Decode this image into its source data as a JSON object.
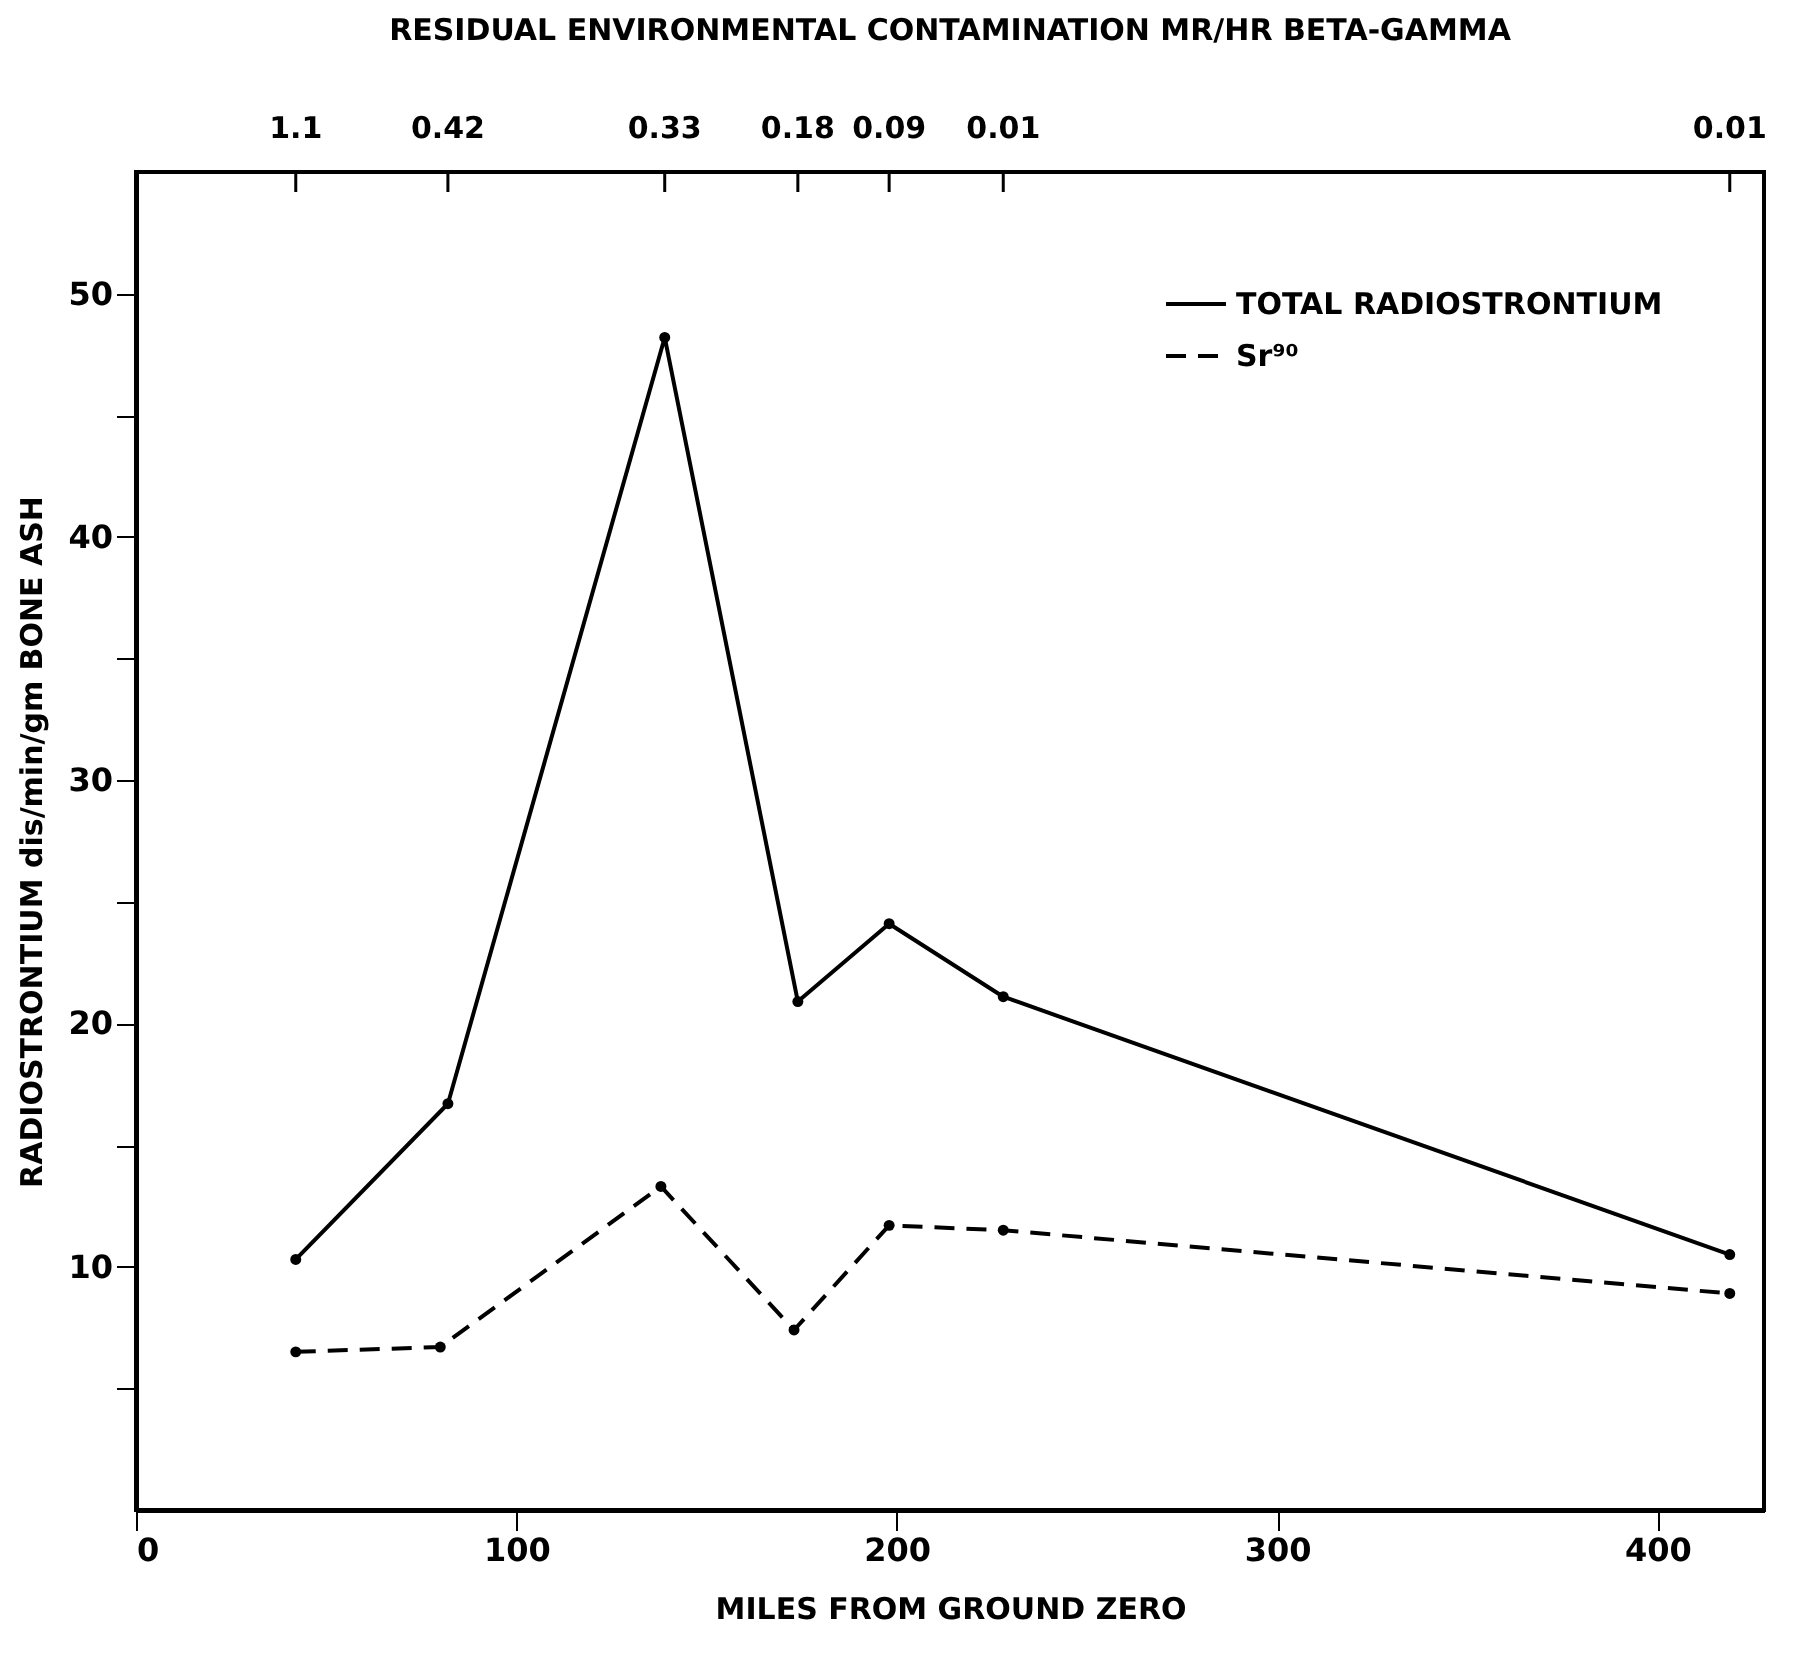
{
  "chart_data": {
    "type": "line",
    "xlabel": "MILES FROM GROUND ZERO",
    "ylabel": "RADIOSTRONTIUM   dis/min/gm BONE ASH",
    "x2label": "RESIDUAL  ENVIRONMENTAL CONTAMINATION   MR/HR  BETA-GAMMA",
    "xlim": [
      0,
      428
    ],
    "xticks": [
      0,
      100,
      200,
      300,
      400
    ],
    "ylim": [
      0,
      55
    ],
    "yticks": [
      {
        "value": 5,
        "label": null
      },
      10,
      {
        "value": 15,
        "label": null
      },
      20,
      {
        "value": 25,
        "label": null
      },
      30,
      {
        "value": 35,
        "label": null
      },
      40,
      {
        "value": 45,
        "label": null
      },
      50
    ],
    "annotations": [
      {
        "text": "1.1",
        "x": 42
      },
      {
        "text": "0.42",
        "x": 82
      },
      {
        "text": "0.33",
        "x": 139
      },
      {
        "text": "0.18",
        "x": 174
      },
      {
        "text": "0.09",
        "x": 198
      },
      {
        "text": "0.01",
        "x": 228
      },
      {
        "text": "0.01",
        "x": 419
      }
    ],
    "series": [
      {
        "name": "TOTAL RADIOSTRONTIUM",
        "color": "#000000",
        "line_style": "solid",
        "x": [
          42,
          82,
          139,
          174,
          198,
          228,
          419
        ],
        "values": [
          10.3,
          16.7,
          48.2,
          20.9,
          24.1,
          21.1,
          10.5
        ]
      },
      {
        "name": "Sr⁹⁰",
        "color": "#000000",
        "line_style": "dashed",
        "x": [
          42,
          80,
          138,
          173,
          198,
          228,
          419
        ],
        "values": [
          6.5,
          6.7,
          13.3,
          7.4,
          11.7,
          11.5,
          8.9
        ]
      }
    ],
    "marker": "circle",
    "grid": false,
    "legend": "top right"
  }
}
